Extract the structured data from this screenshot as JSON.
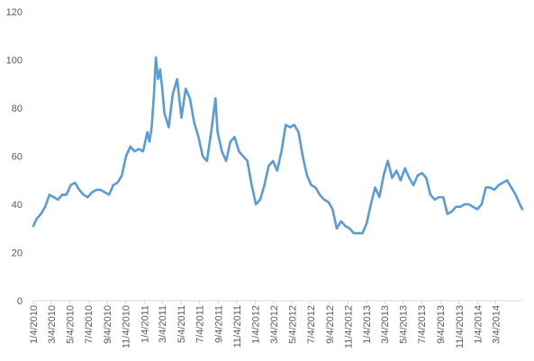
{
  "chart_data": {
    "type": "line",
    "title": "",
    "xlabel": "",
    "ylabel": "",
    "ylim": [
      0,
      120
    ],
    "y_ticks": [
      0,
      20,
      40,
      60,
      80,
      100,
      120
    ],
    "x_range": [
      "1/4/2010",
      "5/31/2014"
    ],
    "x_tick_labels": [
      "1/4/2010",
      "3/4/2010",
      "5/4/2010",
      "7/4/2010",
      "9/4/2010",
      "11/4/2010",
      "1/4/2011",
      "3/4/2011",
      "5/4/2011",
      "7/4/2011",
      "9/4/2011",
      "11/4/2011",
      "1/4/2012",
      "3/4/2012",
      "5/4/2012",
      "7/4/2012",
      "9/4/2012",
      "11/4/2012",
      "1/4/2013",
      "3/4/2013",
      "5/4/2013",
      "7/4/2013",
      "9/4/2013",
      "11/4/2013",
      "1/4/2014",
      "3/4/2014"
    ],
    "grid": false,
    "legend": "none",
    "series_color": "#5b9bd5",
    "axis_color": "#d9d9d9",
    "label_color": "#595959",
    "series": [
      {
        "x": [
          "1/4/2010",
          "1/15/2010",
          "1/29/2010",
          "2/12/2010",
          "2/26/2010",
          "3/12/2010",
          "3/26/2010",
          "4/9/2010",
          "4/23/2010",
          "5/7/2010",
          "5/21/2010",
          "6/4/2010",
          "6/18/2010",
          "7/2/2010",
          "7/16/2010",
          "7/30/2010",
          "8/13/2010",
          "8/27/2010",
          "9/10/2010",
          "9/24/2010",
          "10/8/2010",
          "10/22/2010",
          "11/5/2010",
          "11/19/2010",
          "12/3/2010",
          "12/17/2010",
          "12/31/2010",
          "1/14/2011",
          "1/21/2011",
          "1/28/2011",
          "2/4/2011",
          "2/11/2011",
          "2/18/2011",
          "2/25/2011",
          "3/4/2011",
          "3/11/2011",
          "3/25/2011",
          "4/8/2011",
          "4/22/2011",
          "5/6/2011",
          "5/20/2011",
          "6/3/2011",
          "6/17/2011",
          "7/1/2011",
          "7/15/2011",
          "7/29/2011",
          "8/12/2011",
          "8/26/2011",
          "9/2/2011",
          "9/16/2011",
          "9/30/2011",
          "10/14/2011",
          "10/28/2011",
          "11/11/2011",
          "11/25/2011",
          "12/9/2011",
          "12/23/2011",
          "1/6/2012",
          "1/20/2012",
          "2/3/2012",
          "2/17/2012",
          "3/2/2012",
          "3/16/2012",
          "3/30/2012",
          "4/13/2012",
          "4/27/2012",
          "5/11/2012",
          "5/25/2012",
          "6/8/2012",
          "6/22/2012",
          "7/6/2012",
          "7/20/2012",
          "8/3/2012",
          "8/17/2012",
          "8/31/2012",
          "9/14/2012",
          "9/28/2012",
          "10/12/2012",
          "10/26/2012",
          "11/9/2012",
          "11/23/2012",
          "12/7/2012",
          "12/21/2012",
          "1/4/2013",
          "1/18/2013",
          "2/1/2013",
          "2/15/2013",
          "3/1/2013",
          "3/15/2013",
          "3/29/2013",
          "4/12/2013",
          "4/26/2013",
          "5/10/2013",
          "5/24/2013",
          "6/7/2013",
          "6/21/2013",
          "7/5/2013",
          "7/19/2013",
          "8/2/2013",
          "8/16/2013",
          "8/30/2013",
          "9/13/2013",
          "9/27/2013",
          "10/11/2013",
          "10/25/2013",
          "11/8/2013",
          "11/22/2013",
          "12/6/2013",
          "12/20/2013",
          "1/3/2014",
          "1/17/2014",
          "1/31/2014",
          "2/14/2014",
          "2/28/2014",
          "3/14/2014",
          "3/28/2014",
          "4/11/2014",
          "4/25/2014",
          "5/9/2014",
          "5/23/2014",
          "5/31/2014"
        ],
        "values": [
          31,
          34,
          36,
          39,
          44,
          43,
          42,
          44,
          44,
          48,
          49,
          46,
          44,
          43,
          45,
          46,
          46,
          45,
          44,
          48,
          49,
          52,
          60,
          64,
          62,
          63,
          62,
          70,
          66,
          72,
          84,
          101,
          92,
          96,
          88,
          78,
          72,
          86,
          92,
          76,
          88,
          84,
          74,
          68,
          60,
          58,
          70,
          84,
          70,
          62,
          58,
          66,
          68,
          62,
          60,
          58,
          48,
          40,
          42,
          48,
          56,
          58,
          54,
          62,
          73,
          72,
          73,
          70,
          60,
          52,
          48,
          47,
          44,
          42,
          41,
          38,
          30,
          33,
          31,
          30,
          28,
          28,
          28,
          32,
          40,
          47,
          43,
          52,
          58,
          51,
          54,
          50,
          55,
          51,
          48,
          52,
          53,
          51,
          44,
          42,
          43,
          43,
          36,
          37,
          39,
          39,
          40,
          40,
          39,
          38,
          40,
          47,
          47,
          46,
          48,
          49,
          50,
          47,
          44,
          40,
          38
        ]
      }
    ]
  }
}
